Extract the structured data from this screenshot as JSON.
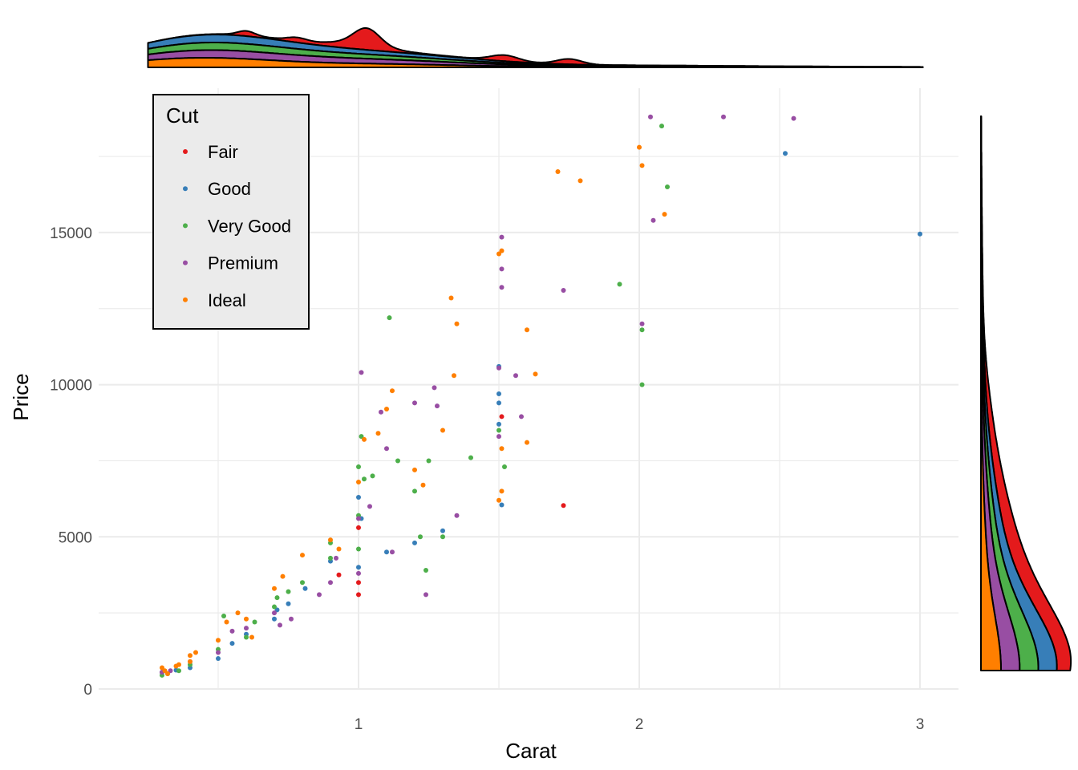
{
  "chart_data": {
    "type": "scatter",
    "title": "",
    "xlabel": "Carat",
    "ylabel": "Price",
    "xlim": [
      0.18,
      3.14
    ],
    "ylim": [
      -300,
      19500
    ],
    "x_ticks": [
      1,
      2,
      3
    ],
    "x_tick_labels": [
      "1",
      "2",
      "3"
    ],
    "y_ticks": [
      0,
      5000,
      10000,
      15000
    ],
    "y_tick_labels": [
      "0",
      "5000",
      "10000",
      "15000"
    ],
    "grid": true,
    "legend": {
      "title": "Cut",
      "placement": "top-left",
      "items": [
        "Fair",
        "Good",
        "Very Good",
        "Premium",
        "Ideal"
      ]
    },
    "marginal_densities": {
      "top": "carat by cut, stacked",
      "right": "price by cut, stacked"
    },
    "series": [
      {
        "name": "Fair",
        "color": "#e41a1c",
        "points": [
          [
            1.0,
            3100
          ],
          [
            1.0,
            3500
          ],
          [
            0.93,
            3750
          ],
          [
            1.51,
            8950
          ],
          [
            1.73,
            6030
          ],
          [
            1.0,
            5300
          ]
        ]
      },
      {
        "name": "Good",
        "color": "#377eb8",
        "points": [
          [
            0.3,
            550
          ],
          [
            0.35,
            620
          ],
          [
            0.4,
            700
          ],
          [
            0.5,
            1000
          ],
          [
            0.55,
            1500
          ],
          [
            0.6,
            1800
          ],
          [
            0.7,
            2300
          ],
          [
            0.71,
            2600
          ],
          [
            0.75,
            2800
          ],
          [
            0.81,
            3300
          ],
          [
            0.9,
            4200
          ],
          [
            1.0,
            4000
          ],
          [
            1.0,
            6300
          ],
          [
            1.01,
            5600
          ],
          [
            1.1,
            4500
          ],
          [
            1.2,
            4800
          ],
          [
            1.3,
            5200
          ],
          [
            1.5,
            8700
          ],
          [
            1.5,
            9700
          ],
          [
            1.5,
            9400
          ],
          [
            1.5,
            10600
          ],
          [
            1.51,
            6050
          ],
          [
            2.52,
            17600
          ],
          [
            3.0,
            14950
          ]
        ]
      },
      {
        "name": "Very Good",
        "color": "#4daf4a",
        "points": [
          [
            0.3,
            450
          ],
          [
            0.32,
            500
          ],
          [
            0.36,
            600
          ],
          [
            0.4,
            800
          ],
          [
            0.5,
            1300
          ],
          [
            0.52,
            2400
          ],
          [
            0.6,
            1700
          ],
          [
            0.63,
            2200
          ],
          [
            0.7,
            2700
          ],
          [
            0.71,
            3000
          ],
          [
            0.75,
            3200
          ],
          [
            0.8,
            3500
          ],
          [
            0.9,
            4300
          ],
          [
            0.9,
            4800
          ],
          [
            1.0,
            4600
          ],
          [
            1.0,
            5700
          ],
          [
            1.0,
            7300
          ],
          [
            1.01,
            8300
          ],
          [
            1.02,
            6900
          ],
          [
            1.05,
            7000
          ],
          [
            1.11,
            12200
          ],
          [
            1.14,
            7500
          ],
          [
            1.2,
            6500
          ],
          [
            1.22,
            5000
          ],
          [
            1.24,
            3900
          ],
          [
            1.25,
            7500
          ],
          [
            1.3,
            5000
          ],
          [
            1.4,
            7600
          ],
          [
            1.5,
            8500
          ],
          [
            1.52,
            7300
          ],
          [
            1.93,
            13300
          ],
          [
            2.01,
            10000
          ],
          [
            2.01,
            11800
          ],
          [
            2.08,
            18500
          ],
          [
            2.1,
            16500
          ]
        ]
      },
      {
        "name": "Premium",
        "color": "#984ea3",
        "points": [
          [
            0.3,
            550
          ],
          [
            0.33,
            600
          ],
          [
            0.4,
            900
          ],
          [
            0.5,
            1200
          ],
          [
            0.55,
            1900
          ],
          [
            0.6,
            2000
          ],
          [
            0.7,
            2500
          ],
          [
            0.72,
            2100
          ],
          [
            0.76,
            2300
          ],
          [
            0.86,
            3100
          ],
          [
            0.9,
            3500
          ],
          [
            0.92,
            4300
          ],
          [
            1.0,
            3800
          ],
          [
            1.0,
            5600
          ],
          [
            1.01,
            10400
          ],
          [
            1.04,
            6000
          ],
          [
            1.08,
            9100
          ],
          [
            1.1,
            7900
          ],
          [
            1.12,
            4500
          ],
          [
            1.2,
            9400
          ],
          [
            1.24,
            3100
          ],
          [
            1.27,
            9900
          ],
          [
            1.28,
            9300
          ],
          [
            1.35,
            5700
          ],
          [
            1.5,
            8300
          ],
          [
            1.5,
            10550
          ],
          [
            1.51,
            13200
          ],
          [
            1.51,
            13800
          ],
          [
            1.51,
            14850
          ],
          [
            1.56,
            10300
          ],
          [
            1.58,
            8950
          ],
          [
            1.73,
            13100
          ],
          [
            2.01,
            12000
          ],
          [
            2.04,
            18800
          ],
          [
            2.05,
            15400
          ],
          [
            2.3,
            18800
          ],
          [
            2.55,
            18750
          ]
        ]
      },
      {
        "name": "Ideal",
        "color": "#ff7f00",
        "points": [
          [
            0.3,
            700
          ],
          [
            0.31,
            600
          ],
          [
            0.32,
            500
          ],
          [
            0.35,
            750
          ],
          [
            0.36,
            800
          ],
          [
            0.4,
            900
          ],
          [
            0.4,
            1100
          ],
          [
            0.42,
            1200
          ],
          [
            0.5,
            1600
          ],
          [
            0.53,
            2200
          ],
          [
            0.57,
            2500
          ],
          [
            0.6,
            2300
          ],
          [
            0.62,
            1700
          ],
          [
            0.7,
            3300
          ],
          [
            0.73,
            3700
          ],
          [
            0.8,
            4400
          ],
          [
            0.9,
            4900
          ],
          [
            0.93,
            4600
          ],
          [
            1.0,
            6800
          ],
          [
            1.02,
            8200
          ],
          [
            1.07,
            8400
          ],
          [
            1.1,
            9200
          ],
          [
            1.12,
            9800
          ],
          [
            1.2,
            7200
          ],
          [
            1.23,
            6700
          ],
          [
            1.3,
            8500
          ],
          [
            1.34,
            10300
          ],
          [
            1.35,
            12000
          ],
          [
            1.33,
            12850
          ],
          [
            1.5,
            6200
          ],
          [
            1.5,
            14300
          ],
          [
            1.51,
            14400
          ],
          [
            1.51,
            6500
          ],
          [
            1.51,
            7900
          ],
          [
            1.6,
            8100
          ],
          [
            1.6,
            11800
          ],
          [
            1.63,
            10350
          ],
          [
            1.71,
            17000
          ],
          [
            1.79,
            16700
          ],
          [
            2.0,
            17800
          ],
          [
            2.01,
            17200
          ],
          [
            2.09,
            15600
          ]
        ]
      }
    ]
  }
}
